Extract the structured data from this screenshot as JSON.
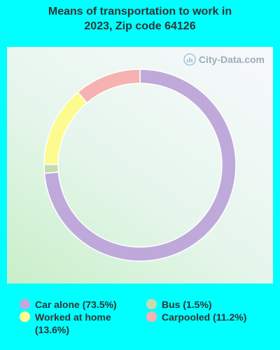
{
  "title_lines": [
    "Means of transportation to work in",
    "2023, Zip code 64126"
  ],
  "watermark": "City-Data.com",
  "colors": {
    "background": "#00ffff",
    "slice_border": "#ffffff",
    "text": "#333333",
    "watermark": "#a0acb6"
  },
  "chart_data": {
    "type": "pie",
    "title": "Means of transportation to work in 2023, Zip code 64126",
    "donut": true,
    "slices": [
      {
        "label": "Car alone",
        "value": 73.5,
        "color": "#bfa9da",
        "legend_text": "Car alone (73.5%)"
      },
      {
        "label": "Bus",
        "value": 1.5,
        "color": "#c6dbb2",
        "legend_text": "Bus (1.5%)"
      },
      {
        "label": "Worked at home",
        "value": 13.6,
        "color": "#fdfb8e",
        "legend_text": "Worked at home (13.6%)"
      },
      {
        "label": "Carpooled",
        "value": 11.2,
        "color": "#f5b2b1",
        "legend_text": "Carpooled (11.2%)"
      }
    ]
  }
}
